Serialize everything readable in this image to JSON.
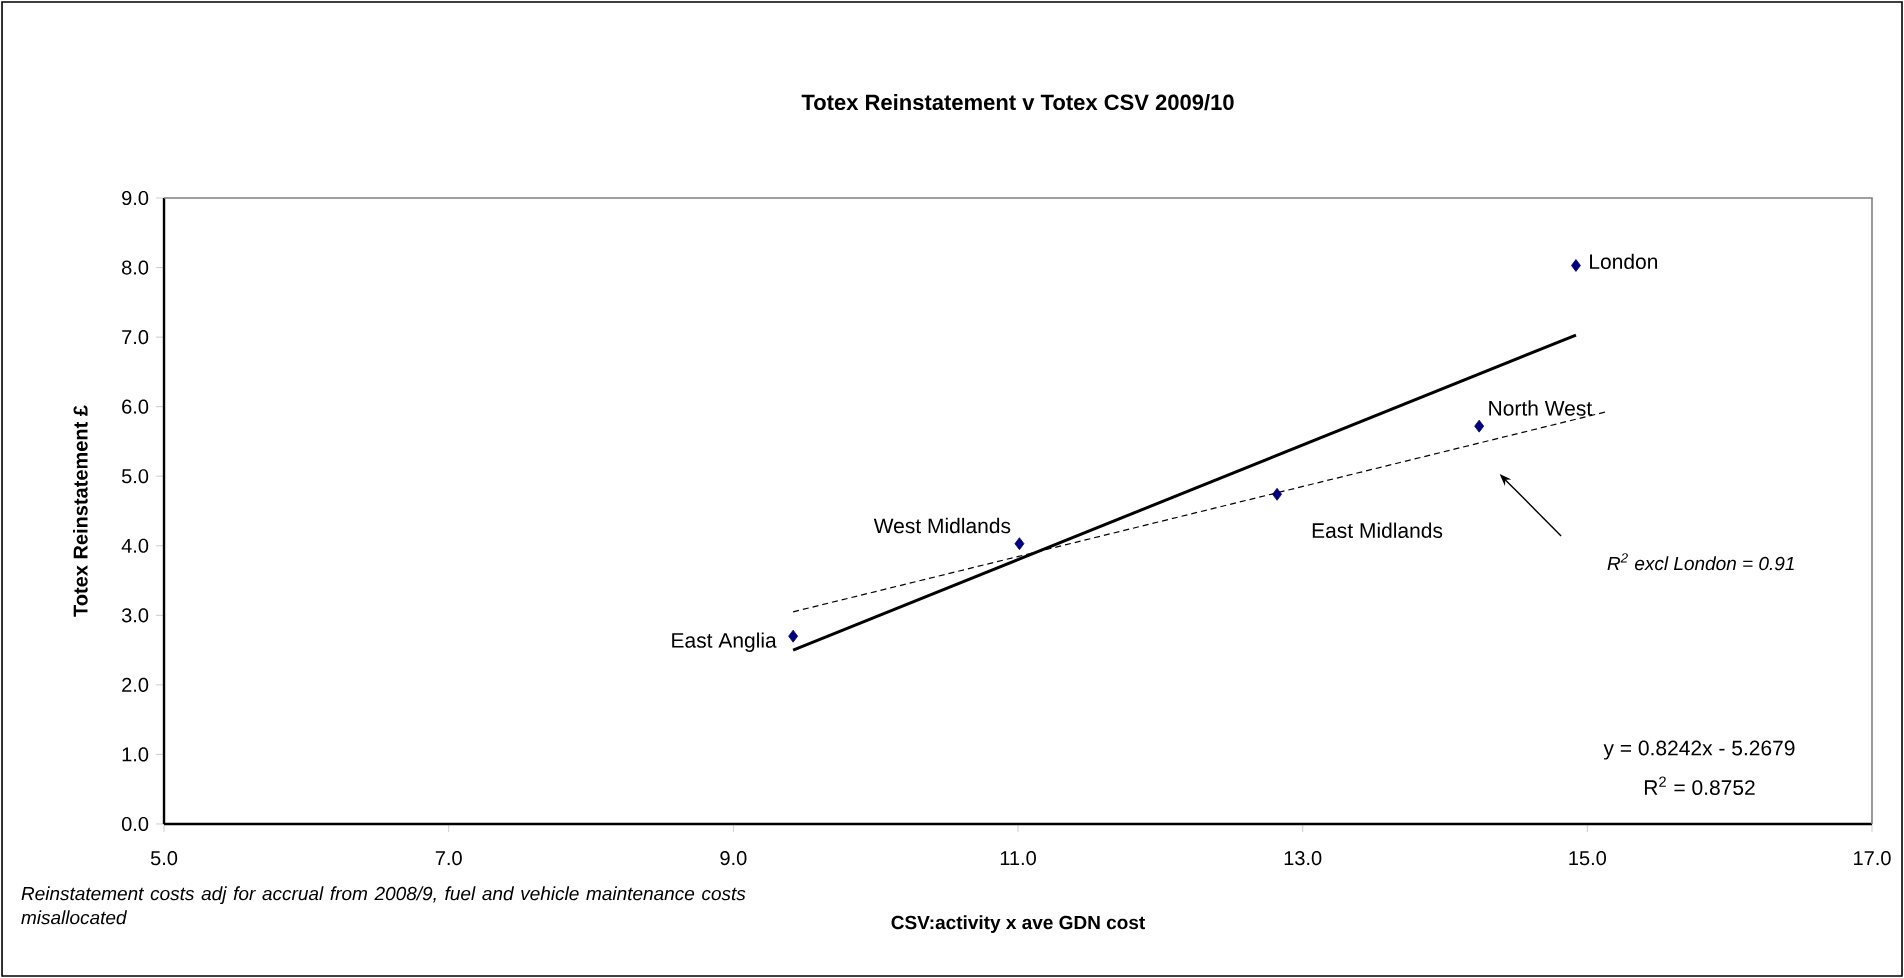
{
  "chart_data": {
    "type": "scatter",
    "title": "Totex Reinstatement v Totex CSV 2009/10",
    "xlabel": "CSV:activity x ave GDN cost",
    "ylabel": "Totex Reinstatement  £",
    "xlim": [
      5,
      17
    ],
    "ylim": [
      0,
      9
    ],
    "xticks": [
      {
        "value": 5,
        "label": "5.0"
      },
      {
        "value": 7,
        "label": "7.0"
      },
      {
        "value": 9,
        "label": "9.0"
      },
      {
        "value": 11,
        "label": "11.0"
      },
      {
        "value": 13,
        "label": "13.0"
      },
      {
        "value": 15,
        "label": "15.0"
      },
      {
        "value": 17,
        "label": "17.0"
      }
    ],
    "yticks": [
      {
        "value": 0,
        "label": "0.0"
      },
      {
        "value": 1,
        "label": "1.0"
      },
      {
        "value": 2,
        "label": "2.0"
      },
      {
        "value": 3,
        "label": "3.0"
      },
      {
        "value": 4,
        "label": "4.0"
      },
      {
        "value": 5,
        "label": "5.0"
      },
      {
        "value": 6,
        "label": "6.0"
      },
      {
        "value": 7,
        "label": "7.0"
      },
      {
        "value": 8,
        "label": "8.0"
      },
      {
        "value": 9,
        "label": "9.0"
      }
    ],
    "series": [
      {
        "color": "#000080",
        "marker": "diamond",
        "x": [
          9.42,
          11.01,
          12.82,
          14.24,
          14.92
        ],
        "values": [
          2.7,
          4.03,
          4.74,
          5.72,
          8.03
        ],
        "value_labels": [
          "East Anglia",
          "West Midlands",
          "East Midlands",
          "North West",
          "London"
        ]
      },
      {
        "type": "line",
        "color": "#000000",
        "marker": "none",
        "line_style": "solid",
        "x": [
          9.42,
          14.92
        ],
        "values": [
          2.5,
          7.03
        ]
      },
      {
        "type": "line",
        "color": "#000000",
        "marker": "none",
        "line_style": "dashed",
        "x": [
          9.42,
          15.14
        ],
        "values": [
          3.05,
          5.93
        ]
      }
    ],
    "annotations": [
      "R$^{2}$ excl London = 0.91",
      "y = 0.8242x  - 5.2679",
      "R$^{2}$ = 0.8752",
      "Reinstatement costs adj for accrual  from 2008/9,  fuel and vehicle maintenance costs misallocated"
    ]
  }
}
